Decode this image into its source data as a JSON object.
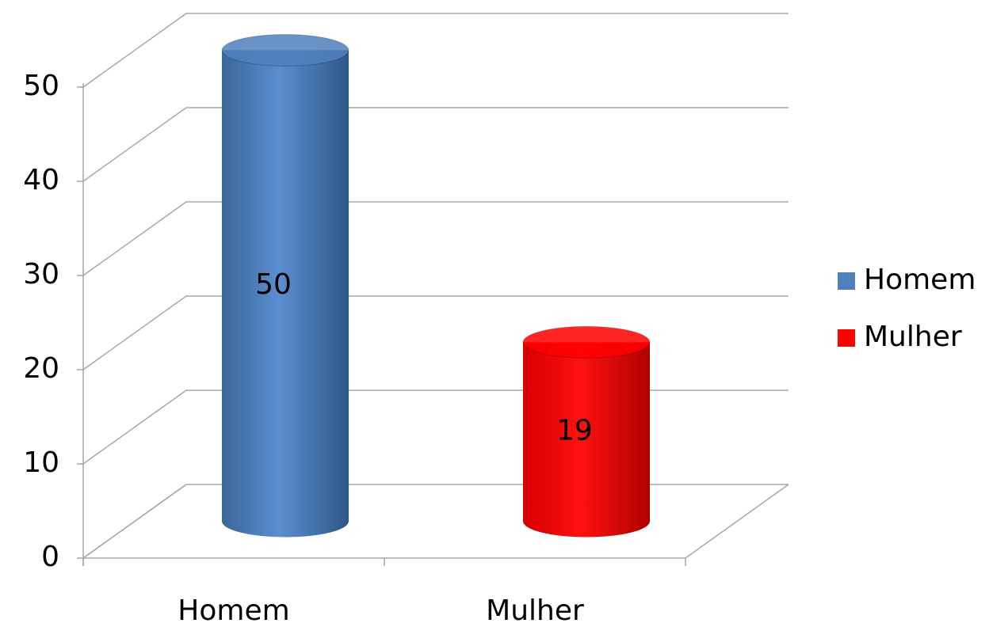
{
  "chart_data": {
    "type": "bar3d",
    "categories": [
      "Homem",
      "Mulher"
    ],
    "values": [
      50,
      19
    ],
    "colors": [
      "#4f81bd",
      "#ff0000"
    ],
    "ylim": [
      0,
      50
    ],
    "yticks": [
      0,
      10,
      20,
      30,
      40,
      50
    ],
    "grid": true,
    "legend": "right"
  }
}
